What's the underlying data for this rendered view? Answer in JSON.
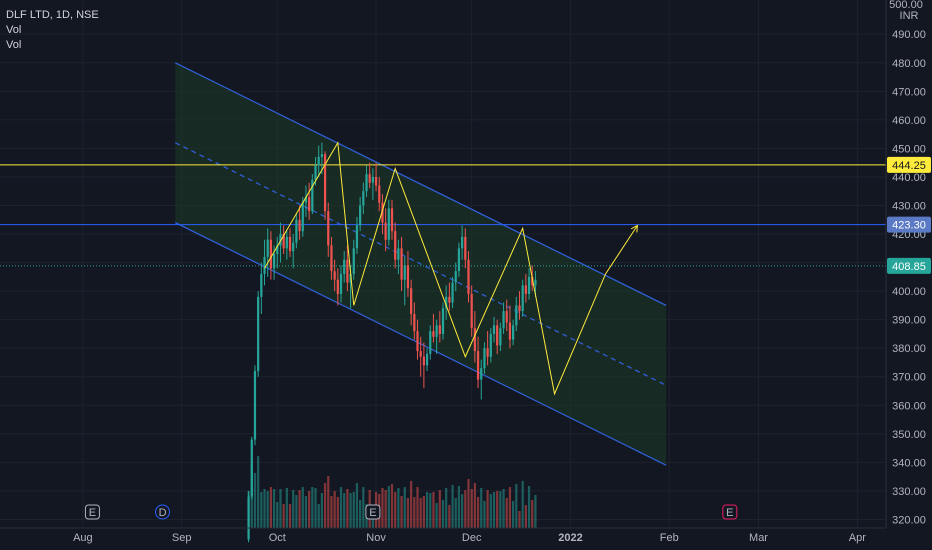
{
  "header": {
    "symbol_line": "DLF LTD, 1D, NSE",
    "indicator_1": "Vol",
    "indicator_2": "Vol"
  },
  "price_axis": {
    "currency": "INR",
    "top_partial_label": "500.00"
  },
  "colors": {
    "background": "#131722",
    "up": "#26a69a",
    "down": "#ef5350",
    "yellow": "#ffeb3b",
    "blue": "#2962ff",
    "channel_line": "#2f5fd6",
    "channel_fill": "#1d3a26",
    "last_price_tag": "#26a69a"
  },
  "chart_data": {
    "type": "candlestick",
    "symbol": "DLF LTD",
    "interval": "1D",
    "exchange": "NSE",
    "ylim": [
      317,
      502
    ],
    "y_ticks": [
      320,
      330,
      340,
      350,
      360,
      370,
      380,
      390,
      400,
      410,
      420,
      430,
      440,
      450,
      460,
      470,
      480,
      490
    ],
    "x_range": [
      "2021-07-06",
      "2022-04-10"
    ],
    "x_ticks": [
      {
        "label": "Aug",
        "date": "2021-08-01"
      },
      {
        "label": "Sep",
        "date": "2021-09-01"
      },
      {
        "label": "Oct",
        "date": "2021-10-01"
      },
      {
        "label": "Nov",
        "date": "2021-11-01"
      },
      {
        "label": "Dec",
        "date": "2021-12-01"
      },
      {
        "label": "2022",
        "date": "2022-01-01"
      },
      {
        "label": "Feb",
        "date": "2022-02-01"
      },
      {
        "label": "Mar",
        "date": "2022-03-01"
      },
      {
        "label": "Apr",
        "date": "2022-04-01"
      }
    ],
    "horizontal_levels": [
      {
        "price": 444.25,
        "label": "444.25",
        "color": "#ffeb3b"
      },
      {
        "price": 423.3,
        "label": "423.30",
        "color": "#2962ff"
      }
    ],
    "last_price": {
      "price": 408.85,
      "label": "408.85"
    },
    "channel": {
      "upper": [
        [
          "2021-08-30",
          480
        ],
        [
          "2022-01-31",
          395
        ]
      ],
      "mid": [
        [
          "2021-08-30",
          452
        ],
        [
          "2022-01-31",
          367
        ]
      ],
      "lower": [
        [
          "2021-08-30",
          424
        ],
        [
          "2022-01-31",
          339
        ]
      ]
    },
    "zigzag": [
      [
        "2021-09-27",
        408
      ],
      [
        "2021-10-20",
        452
      ],
      [
        "2021-10-25",
        395
      ],
      [
        "2021-11-07",
        443
      ],
      [
        "2021-11-29",
        377
      ],
      [
        "2021-12-17",
        422
      ],
      [
        "2021-12-27",
        364
      ],
      [
        "2022-01-12",
        406
      ],
      [
        "2022-01-22",
        423
      ]
    ],
    "event_markers": [
      {
        "label": "E",
        "date": "2021-08-04"
      },
      {
        "label": "D",
        "date": "2021-08-26"
      },
      {
        "label": "E",
        "date": "2021-10-31"
      },
      {
        "label": "E",
        "date": "2022-02-20"
      }
    ],
    "candles": [
      [
        "2021-09-22",
        313,
        330,
        312,
        328
      ],
      [
        "2021-09-23",
        328,
        349,
        327,
        348
      ],
      [
        "2021-09-24",
        348,
        374,
        346,
        372
      ],
      [
        "2021-09-25",
        372,
        400,
        370,
        398
      ],
      [
        "2021-09-26",
        398,
        410,
        392,
        406
      ],
      [
        "2021-09-27",
        406,
        418,
        402,
        412
      ],
      [
        "2021-09-28",
        412,
        422,
        405,
        418
      ],
      [
        "2021-09-29",
        418,
        421,
        404,
        408
      ],
      [
        "2021-09-30",
        408,
        416,
        404,
        413
      ],
      [
        "2021-10-01",
        413,
        419,
        408,
        416
      ],
      [
        "2021-10-02",
        416,
        424,
        410,
        420
      ],
      [
        "2021-10-03",
        420,
        423,
        413,
        415
      ],
      [
        "2021-10-04",
        415,
        421,
        411,
        419
      ],
      [
        "2021-10-05",
        419,
        422,
        412,
        414
      ],
      [
        "2021-10-06",
        414,
        420,
        408,
        417
      ],
      [
        "2021-10-07",
        417,
        427,
        415,
        425
      ],
      [
        "2021-10-08",
        425,
        430,
        418,
        421
      ],
      [
        "2021-10-09",
        421,
        433,
        419,
        431
      ],
      [
        "2021-10-10",
        431,
        437,
        426,
        433
      ],
      [
        "2021-10-11",
        433,
        438,
        425,
        428
      ],
      [
        "2021-10-12",
        428,
        441,
        427,
        439
      ],
      [
        "2021-10-13",
        439,
        447,
        437,
        444
      ],
      [
        "2021-10-14",
        444,
        451,
        440,
        447
      ],
      [
        "2021-10-15",
        447,
        452,
        441,
        448
      ],
      [
        "2021-10-16",
        448,
        449,
        425,
        428
      ],
      [
        "2021-10-17",
        428,
        431,
        412,
        416
      ],
      [
        "2021-10-18",
        416,
        419,
        404,
        407
      ],
      [
        "2021-10-19",
        407,
        411,
        400,
        404
      ],
      [
        "2021-10-20",
        404,
        408,
        395,
        399
      ],
      [
        "2021-10-21",
        399,
        409,
        396,
        406
      ],
      [
        "2021-10-22",
        406,
        414,
        403,
        411
      ],
      [
        "2021-10-23",
        411,
        416,
        400,
        403
      ],
      [
        "2021-10-24",
        403,
        409,
        394,
        406
      ],
      [
        "2021-10-25",
        406,
        418,
        404,
        415
      ],
      [
        "2021-10-26",
        415,
        426,
        413,
        423
      ],
      [
        "2021-10-27",
        423,
        433,
        421,
        430
      ],
      [
        "2021-10-28",
        430,
        438,
        427,
        435
      ],
      [
        "2021-10-29",
        435,
        444,
        433,
        441
      ],
      [
        "2021-10-30",
        441,
        445,
        436,
        438
      ],
      [
        "2021-10-31",
        438,
        443,
        432,
        440
      ],
      [
        "2021-11-01",
        440,
        445,
        435,
        437
      ],
      [
        "2021-11-02",
        437,
        440,
        428,
        431
      ],
      [
        "2021-11-03",
        431,
        434,
        420,
        424
      ],
      [
        "2021-11-04",
        424,
        429,
        414,
        418
      ],
      [
        "2021-11-05",
        418,
        432,
        416,
        429
      ],
      [
        "2021-11-06",
        429,
        432,
        418,
        421
      ],
      [
        "2021-11-07",
        421,
        424,
        408,
        411
      ],
      [
        "2021-11-08",
        411,
        418,
        406,
        415
      ],
      [
        "2021-11-09",
        415,
        419,
        400,
        404
      ],
      [
        "2021-11-10",
        404,
        412,
        395,
        409
      ],
      [
        "2021-11-11",
        409,
        414,
        398,
        401
      ],
      [
        "2021-11-12",
        401,
        404,
        388,
        392
      ],
      [
        "2021-11-13",
        392,
        396,
        383,
        386
      ],
      [
        "2021-11-14",
        386,
        390,
        376,
        379
      ],
      [
        "2021-11-15",
        379,
        384,
        370,
        377
      ],
      [
        "2021-11-16",
        377,
        382,
        366,
        374
      ],
      [
        "2021-11-17",
        374,
        380,
        372,
        378
      ],
      [
        "2021-11-18",
        378,
        388,
        376,
        386
      ],
      [
        "2021-11-19",
        386,
        392,
        382,
        384
      ],
      [
        "2021-11-20",
        384,
        390,
        378,
        388
      ],
      [
        "2021-11-21",
        388,
        393,
        382,
        385
      ],
      [
        "2021-11-22",
        385,
        396,
        383,
        394
      ],
      [
        "2021-11-23",
        394,
        402,
        390,
        398
      ],
      [
        "2021-11-24",
        398,
        403,
        393,
        396
      ],
      [
        "2021-11-25",
        396,
        405,
        394,
        403
      ],
      [
        "2021-11-26",
        403,
        410,
        400,
        407
      ],
      [
        "2021-11-27",
        407,
        417,
        405,
        415
      ],
      [
        "2021-11-28",
        415,
        423,
        411,
        419
      ],
      [
        "2021-11-29",
        419,
        422,
        408,
        411
      ],
      [
        "2021-11-30",
        411,
        414,
        396,
        399
      ],
      [
        "2021-12-01",
        399,
        402,
        384,
        387
      ],
      [
        "2021-12-02",
        387,
        393,
        375,
        379
      ],
      [
        "2021-12-03",
        379,
        384,
        366,
        369
      ],
      [
        "2021-12-04",
        369,
        376,
        362,
        373
      ],
      [
        "2021-12-05",
        373,
        382,
        371,
        380
      ],
      [
        "2021-12-06",
        380,
        386,
        374,
        377
      ],
      [
        "2021-12-07",
        377,
        387,
        375,
        385
      ],
      [
        "2021-12-08",
        385,
        391,
        382,
        388
      ],
      [
        "2021-12-09",
        388,
        390,
        378,
        381
      ],
      [
        "2021-12-10",
        381,
        389,
        379,
        387
      ],
      [
        "2021-12-11",
        387,
        396,
        385,
        393
      ],
      [
        "2021-12-12",
        393,
        397,
        386,
        389
      ],
      [
        "2021-12-13",
        389,
        395,
        380,
        383
      ],
      [
        "2021-12-14",
        383,
        390,
        381,
        388
      ],
      [
        "2021-12-15",
        388,
        398,
        386,
        395
      ],
      [
        "2021-12-16",
        395,
        400,
        390,
        393
      ],
      [
        "2021-12-17",
        393,
        404,
        391,
        402
      ],
      [
        "2021-12-18",
        402,
        406,
        396,
        399
      ],
      [
        "2021-12-19",
        399,
        408,
        397,
        405
      ],
      [
        "2021-12-20",
        405,
        409,
        400,
        402
      ],
      [
        "2021-12-21",
        402,
        407,
        398,
        404
      ]
    ]
  }
}
